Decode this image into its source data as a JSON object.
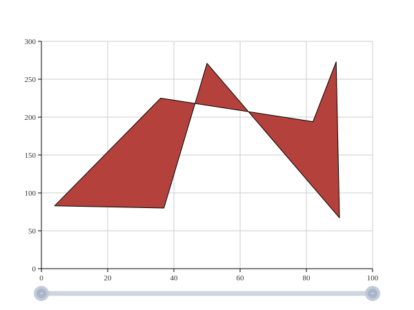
{
  "chart_data": {
    "type": "area",
    "title": "",
    "xlabel": "",
    "ylabel": "",
    "xlim": [
      0,
      100
    ],
    "ylim": [
      0,
      300
    ],
    "x_ticks": [
      "0",
      "20",
      "40",
      "60",
      "80",
      "100"
    ],
    "y_ticks": [
      "0",
      "50",
      "100",
      "150",
      "200",
      "250",
      "300"
    ],
    "grid": true,
    "legend": "none",
    "series": [
      {
        "points": [
          {
            "x": 4,
            "y": 83
          },
          {
            "x": 37,
            "y": 80
          },
          {
            "x": 50,
            "y": 271
          },
          {
            "x": 90,
            "y": 67
          },
          {
            "x": 89,
            "y": 273
          },
          {
            "x": 82,
            "y": 194
          },
          {
            "x": 36,
            "y": 225
          }
        ],
        "fill": "#b5413c",
        "stroke": "#000000"
      }
    ],
    "range_slider": {
      "start": 0,
      "end": 100
    }
  }
}
